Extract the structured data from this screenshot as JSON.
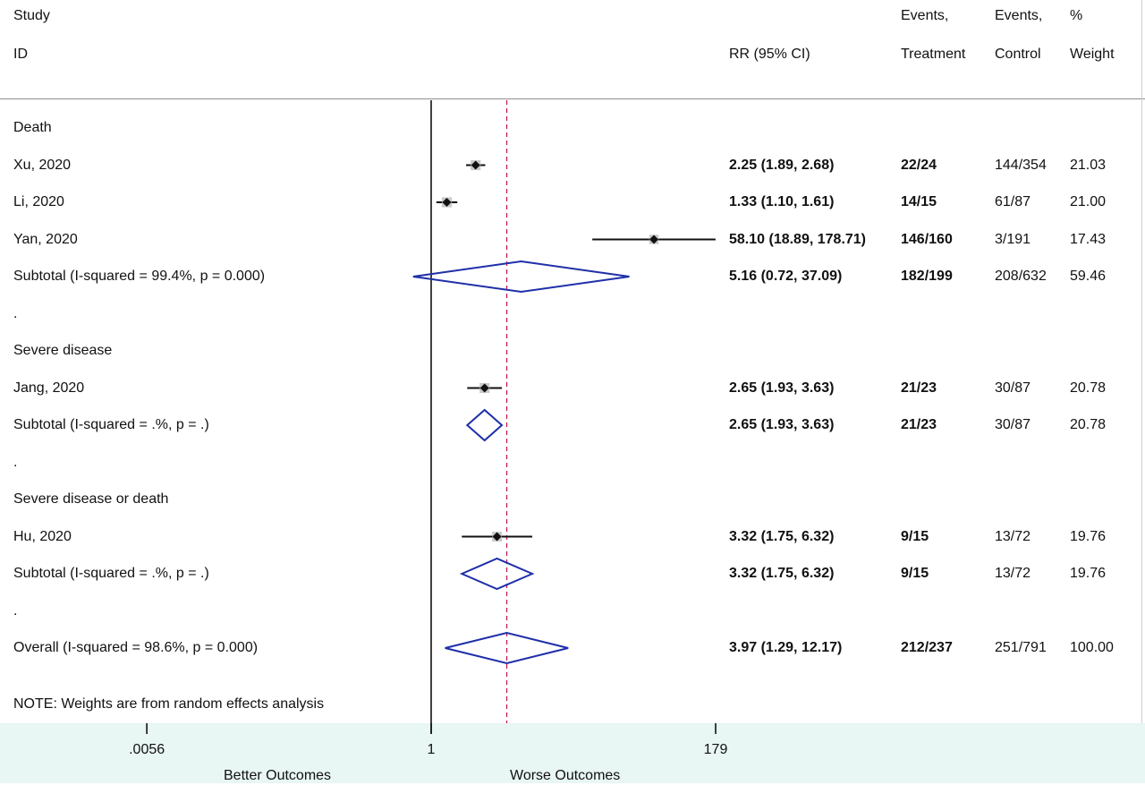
{
  "header": {
    "study_line1": "Study",
    "study_line2": "ID",
    "rr_label": "RR (95% CI)",
    "events_t_line1": "Events,",
    "events_t_line2": "Treatment",
    "events_c_line1": "Events,",
    "events_c_line2": "Control",
    "weight_line1": "%",
    "weight_line2": "Weight"
  },
  "footer_note": "NOTE: Weights are from random effects analysis",
  "axis": {
    "ticks": [
      0.0056,
      1,
      179
    ],
    "tick_labels": [
      ".0056",
      "1",
      "179"
    ],
    "left_label": "Better Outcomes",
    "right_label": "Worse Outcomes",
    "scale": "log",
    "null_line": 1,
    "overall_line": 3.97
  },
  "colors": {
    "diamond": "#1f2fa8",
    "overall_line": "#c2185b",
    "axis_band": "#e8f6f4"
  },
  "chart_data": {
    "type": "forest",
    "rows": [
      {
        "kind": "group",
        "label": "Death"
      },
      {
        "kind": "study",
        "label": "Xu, 2020",
        "rr": 2.25,
        "lo": 1.89,
        "hi": 2.68,
        "ci_text": "2.25 (1.89, 2.68)",
        "events_t": "22/24",
        "events_c": "144/354",
        "weight": "21.03"
      },
      {
        "kind": "study",
        "label": "Li, 2020",
        "rr": 1.33,
        "lo": 1.1,
        "hi": 1.61,
        "ci_text": "1.33 (1.10, 1.61)",
        "events_t": "14/15",
        "events_c": "61/87",
        "weight": "21.00"
      },
      {
        "kind": "study",
        "label": "Yan, 2020",
        "rr": 58.1,
        "lo": 18.89,
        "hi": 178.71,
        "ci_text": "58.10 (18.89, 178.71)",
        "events_t": "146/160",
        "events_c": "3/191",
        "weight": "17.43"
      },
      {
        "kind": "subtotal",
        "label": "Subtotal  (I-squared = 99.4%, p = 0.000)",
        "rr": 5.16,
        "lo": 0.72,
        "hi": 37.09,
        "ci_text": "5.16 (0.72, 37.09)",
        "events_t": "182/199",
        "events_c": "208/632",
        "weight": "59.46"
      },
      {
        "kind": "spacer",
        "label": "."
      },
      {
        "kind": "group",
        "label": "Severe disease"
      },
      {
        "kind": "study",
        "label": "Jang, 2020",
        "rr": 2.65,
        "lo": 1.93,
        "hi": 3.63,
        "ci_text": "2.65 (1.93, 3.63)",
        "events_t": "21/23",
        "events_c": "30/87",
        "weight": "20.78"
      },
      {
        "kind": "subtotal",
        "label": "Subtotal  (I-squared = .%, p = .)",
        "rr": 2.65,
        "lo": 1.93,
        "hi": 3.63,
        "ci_text": "2.65 (1.93, 3.63)",
        "events_t": "21/23",
        "events_c": "30/87",
        "weight": "20.78"
      },
      {
        "kind": "spacer",
        "label": "."
      },
      {
        "kind": "group",
        "label": "Severe disease or death"
      },
      {
        "kind": "study",
        "label": "Hu, 2020",
        "rr": 3.32,
        "lo": 1.75,
        "hi": 6.32,
        "ci_text": "3.32 (1.75, 6.32)",
        "events_t": "9/15",
        "events_c": "13/72",
        "weight": "19.76"
      },
      {
        "kind": "subtotal",
        "label": "Subtotal  (I-squared = .%, p = .)",
        "rr": 3.32,
        "lo": 1.75,
        "hi": 6.32,
        "ci_text": "3.32 (1.75, 6.32)",
        "events_t": "9/15",
        "events_c": "13/72",
        "weight": "19.76"
      },
      {
        "kind": "spacer",
        "label": "."
      },
      {
        "kind": "overall",
        "label": "Overall  (I-squared = 98.6%, p = 0.000)",
        "rr": 3.97,
        "lo": 1.29,
        "hi": 12.17,
        "ci_text": "3.97 (1.29, 12.17)",
        "events_t": "212/237",
        "events_c": "251/791",
        "weight": "100.00"
      }
    ]
  }
}
